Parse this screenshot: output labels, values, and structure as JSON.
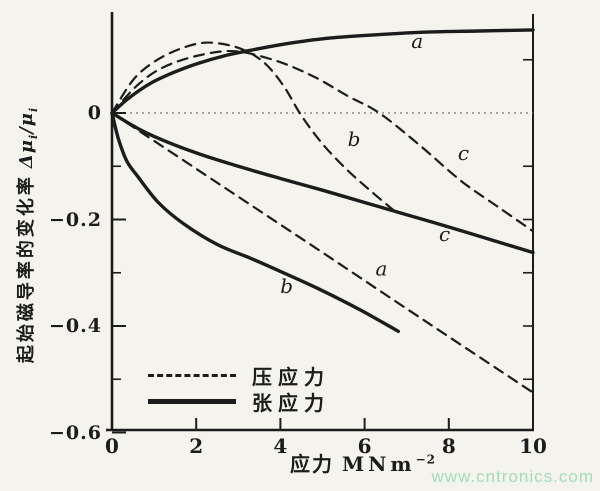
{
  "watermark": "www.cntronics.com",
  "colors": {
    "ink": "#1c1c1c",
    "paper": "#f4f3ee",
    "watermark": "#a5dcb8",
    "zero_line": "#77776f"
  },
  "y_axis": {
    "title_cn": "起始磁导率的变化率",
    "formula": {
      "p1": "Δμ",
      "s1": "i",
      "p2": "/μ",
      "s2": "i"
    },
    "ticks": [
      {
        "v": 0,
        "label": "0"
      },
      {
        "v": -0.2,
        "label": "−0.2"
      },
      {
        "v": -0.4,
        "label": "−0.4"
      },
      {
        "v": -0.6,
        "label": "−0.6"
      }
    ],
    "minor_ticks": [
      -0.1,
      -0.3,
      -0.5
    ],
    "right_ticks": [
      0.1,
      -0.1,
      -0.2,
      -0.3,
      -0.4,
      -0.5
    ]
  },
  "x_axis": {
    "title_cn": "应力",
    "unit": "MNm",
    "exp": "−2",
    "ticks": [
      {
        "v": 0,
        "label": "0"
      },
      {
        "v": 2,
        "label": "2"
      },
      {
        "v": 4,
        "label": "4"
      },
      {
        "v": 6,
        "label": "6"
      },
      {
        "v": 8,
        "label": "8"
      },
      {
        "v": 10,
        "label": "10"
      }
    ]
  },
  "legend": [
    {
      "style": "dashed",
      "label": "压应力"
    },
    {
      "style": "solid",
      "label": "张应力"
    }
  ],
  "chart_data": {
    "type": "line",
    "title": "",
    "xlabel": "应力 MNm⁻²",
    "ylabel": "起始磁导率的变化率 Δμi/μi",
    "xlim": [
      0,
      10
    ],
    "ylim": [
      -0.6,
      0.19
    ],
    "grid": false,
    "legend_position": "lower-left-inside",
    "series": [
      {
        "name": "a",
        "stress": "张应力",
        "style": "solid",
        "points": [
          [
            0,
            0
          ],
          [
            0.4,
            0.028
          ],
          [
            0.9,
            0.055
          ],
          [
            1.4,
            0.074
          ],
          [
            2,
            0.092
          ],
          [
            2.7,
            0.108
          ],
          [
            3.5,
            0.121
          ],
          [
            4.3,
            0.132
          ],
          [
            5.2,
            0.141
          ],
          [
            6.3,
            0.147
          ],
          [
            7.5,
            0.152
          ],
          [
            8.7,
            0.154
          ],
          [
            10,
            0.156
          ]
        ]
      },
      {
        "name": "b",
        "stress": "张应力",
        "style": "solid",
        "points": [
          [
            0,
            0
          ],
          [
            0.15,
            -0.048
          ],
          [
            0.35,
            -0.09
          ],
          [
            0.6,
            -0.118
          ],
          [
            1.1,
            -0.168
          ],
          [
            1.7,
            -0.208
          ],
          [
            2.5,
            -0.247
          ],
          [
            3.3,
            -0.273
          ],
          [
            4.1,
            -0.301
          ],
          [
            4.9,
            -0.33
          ],
          [
            5.9,
            -0.37
          ],
          [
            6.8,
            -0.41
          ]
        ]
      },
      {
        "name": "c",
        "stress": "张应力",
        "style": "solid",
        "points": [
          [
            0,
            0
          ],
          [
            0.5,
            -0.024
          ],
          [
            1,
            -0.044
          ],
          [
            2,
            -0.075
          ],
          [
            3,
            -0.1
          ],
          [
            4,
            -0.123
          ],
          [
            5,
            -0.145
          ],
          [
            6,
            -0.168
          ],
          [
            7,
            -0.191
          ],
          [
            8,
            -0.214
          ],
          [
            9,
            -0.238
          ],
          [
            10,
            -0.262
          ]
        ]
      },
      {
        "name": "a",
        "stress": "压应力",
        "style": "dashed",
        "points": [
          [
            0,
            0
          ],
          [
            2.5,
            -0.131
          ],
          [
            5,
            -0.262
          ],
          [
            7.5,
            -0.394
          ],
          [
            10,
            -0.525
          ]
        ]
      },
      {
        "name": "b",
        "stress": "压应力",
        "style": "dashed",
        "points": [
          [
            0,
            0
          ],
          [
            0.5,
            0.062
          ],
          [
            1,
            0.096
          ],
          [
            1.6,
            0.12
          ],
          [
            2.2,
            0.132
          ],
          [
            2.8,
            0.127
          ],
          [
            3.3,
            0.112
          ],
          [
            3.7,
            0.088
          ],
          [
            4.1,
            0.048
          ],
          [
            4.5,
            -0.005
          ],
          [
            5,
            -0.058
          ],
          [
            5.6,
            -0.108
          ],
          [
            6.2,
            -0.15
          ],
          [
            6.8,
            -0.19
          ]
        ]
      },
      {
        "name": "c",
        "stress": "压应力",
        "style": "dashed",
        "points": [
          [
            0,
            0
          ],
          [
            0.6,
            0.052
          ],
          [
            1.2,
            0.085
          ],
          [
            2,
            0.107
          ],
          [
            2.9,
            0.116
          ],
          [
            3.9,
            0.098
          ],
          [
            4.8,
            0.068
          ],
          [
            5.6,
            0.032
          ],
          [
            6.35,
            0
          ],
          [
            7.3,
            -0.06
          ],
          [
            8.3,
            -0.128
          ],
          [
            9.2,
            -0.178
          ],
          [
            10,
            -0.222
          ]
        ]
      }
    ],
    "annotations": [
      {
        "text": "a",
        "curve": "solid-a",
        "x": 7.25,
        "y": 0.122
      },
      {
        "text": "b",
        "curve": "dashed-b",
        "x": 5.75,
        "y": -0.062
      },
      {
        "text": "c",
        "curve": "dashed-c",
        "x": 8.35,
        "y": -0.088
      },
      {
        "text": "c",
        "curve": "solid-c",
        "x": 7.9,
        "y": -0.24
      },
      {
        "text": "a",
        "curve": "dashed-a",
        "x": 6.4,
        "y": -0.305
      },
      {
        "text": "b",
        "curve": "solid-b",
        "x": 4.15,
        "y": -0.338
      }
    ]
  }
}
